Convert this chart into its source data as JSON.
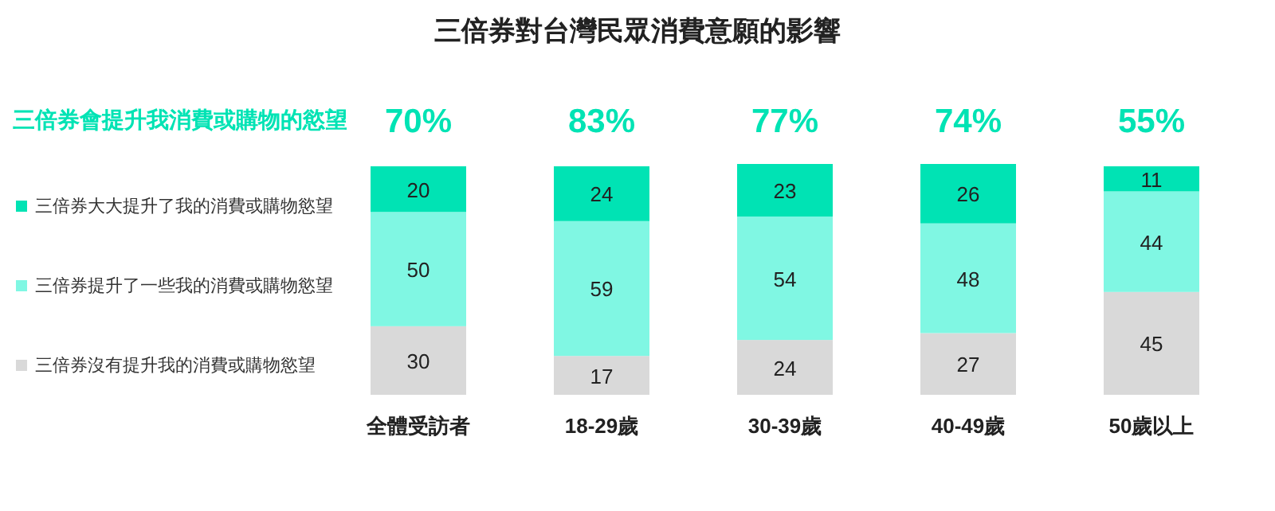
{
  "chart_data": {
    "type": "bar",
    "stacked": true,
    "title": "三倍券對台灣民眾消費意願的影響",
    "categories": [
      "全體受訪者",
      "18-29歲",
      "30-39歲",
      "40-49歲",
      "50歲以上"
    ],
    "series": [
      {
        "name": "三倍券沒有提升我的消費或購物慾望",
        "color": "#d9d9d9",
        "values": [
          30,
          17,
          24,
          27,
          45
        ]
      },
      {
        "name": "三倍券提升了一些我的消費或購物慾望",
        "color": "#80f7e3",
        "values": [
          50,
          59,
          54,
          48,
          44
        ]
      },
      {
        "name": "三倍券大大提升了我的消費或購物慾望",
        "color": "#00e3b4",
        "values": [
          20,
          24,
          23,
          26,
          11
        ]
      }
    ],
    "annotations": [
      "三倍券會提升我消費或購物的慾望",
      "70%",
      "83%",
      "77%",
      "74%",
      "55%"
    ],
    "data_labels": true,
    "legend": "left"
  }
}
